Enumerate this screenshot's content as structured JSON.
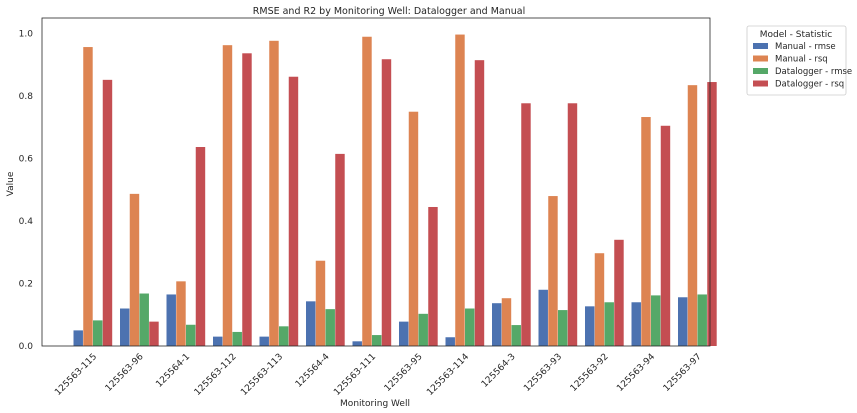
{
  "chart_data": {
    "type": "bar",
    "title": "RMSE and R2 by Monitoring Well: Datalogger and Manual",
    "xlabel": "Monitoring Well",
    "ylabel": "Value",
    "ylim": [
      0,
      1.05
    ],
    "yticks": [
      "0.0",
      "0.2",
      "0.4",
      "0.6",
      "0.8",
      "1.0"
    ],
    "grid": false,
    "legend": {
      "title": "Model - Statistic",
      "placement": "outside-upper-right"
    },
    "categories": [
      "125563-115",
      "125563-96",
      "125564-1",
      "125563-112",
      "125563-113",
      "125564-4",
      "125563-111",
      "125563-95",
      "125563-114",
      "125564-3",
      "125563-93",
      "125563-92",
      "125563-94",
      "125563-97"
    ],
    "series": [
      {
        "name": "Manual - rmse",
        "color": "#4C72B0",
        "values": [
          0.05,
          0.12,
          0.165,
          0.03,
          0.03,
          0.143,
          0.015,
          0.078,
          0.028,
          0.137,
          0.18,
          0.127,
          0.14,
          0.156
        ]
      },
      {
        "name": "Manual - rsq",
        "color": "#DD8452",
        "values": [
          0.957,
          0.487,
          0.207,
          0.963,
          0.977,
          0.273,
          0.99,
          0.75,
          0.997,
          0.153,
          0.48,
          0.297,
          0.733,
          0.835
        ]
      },
      {
        "name": "Datalogger - rmse",
        "color": "#55A868",
        "values": [
          0.082,
          0.168,
          0.068,
          0.045,
          0.063,
          0.118,
          0.035,
          0.103,
          0.12,
          0.067,
          0.115,
          0.14,
          0.162,
          0.165
        ]
      },
      {
        "name": "Datalogger - rsq",
        "color": "#C44E52",
        "values": [
          0.852,
          0.078,
          0.637,
          0.937,
          0.862,
          0.615,
          0.918,
          0.445,
          0.915,
          0.777,
          0.777,
          0.34,
          0.705,
          0.845
        ]
      }
    ]
  }
}
